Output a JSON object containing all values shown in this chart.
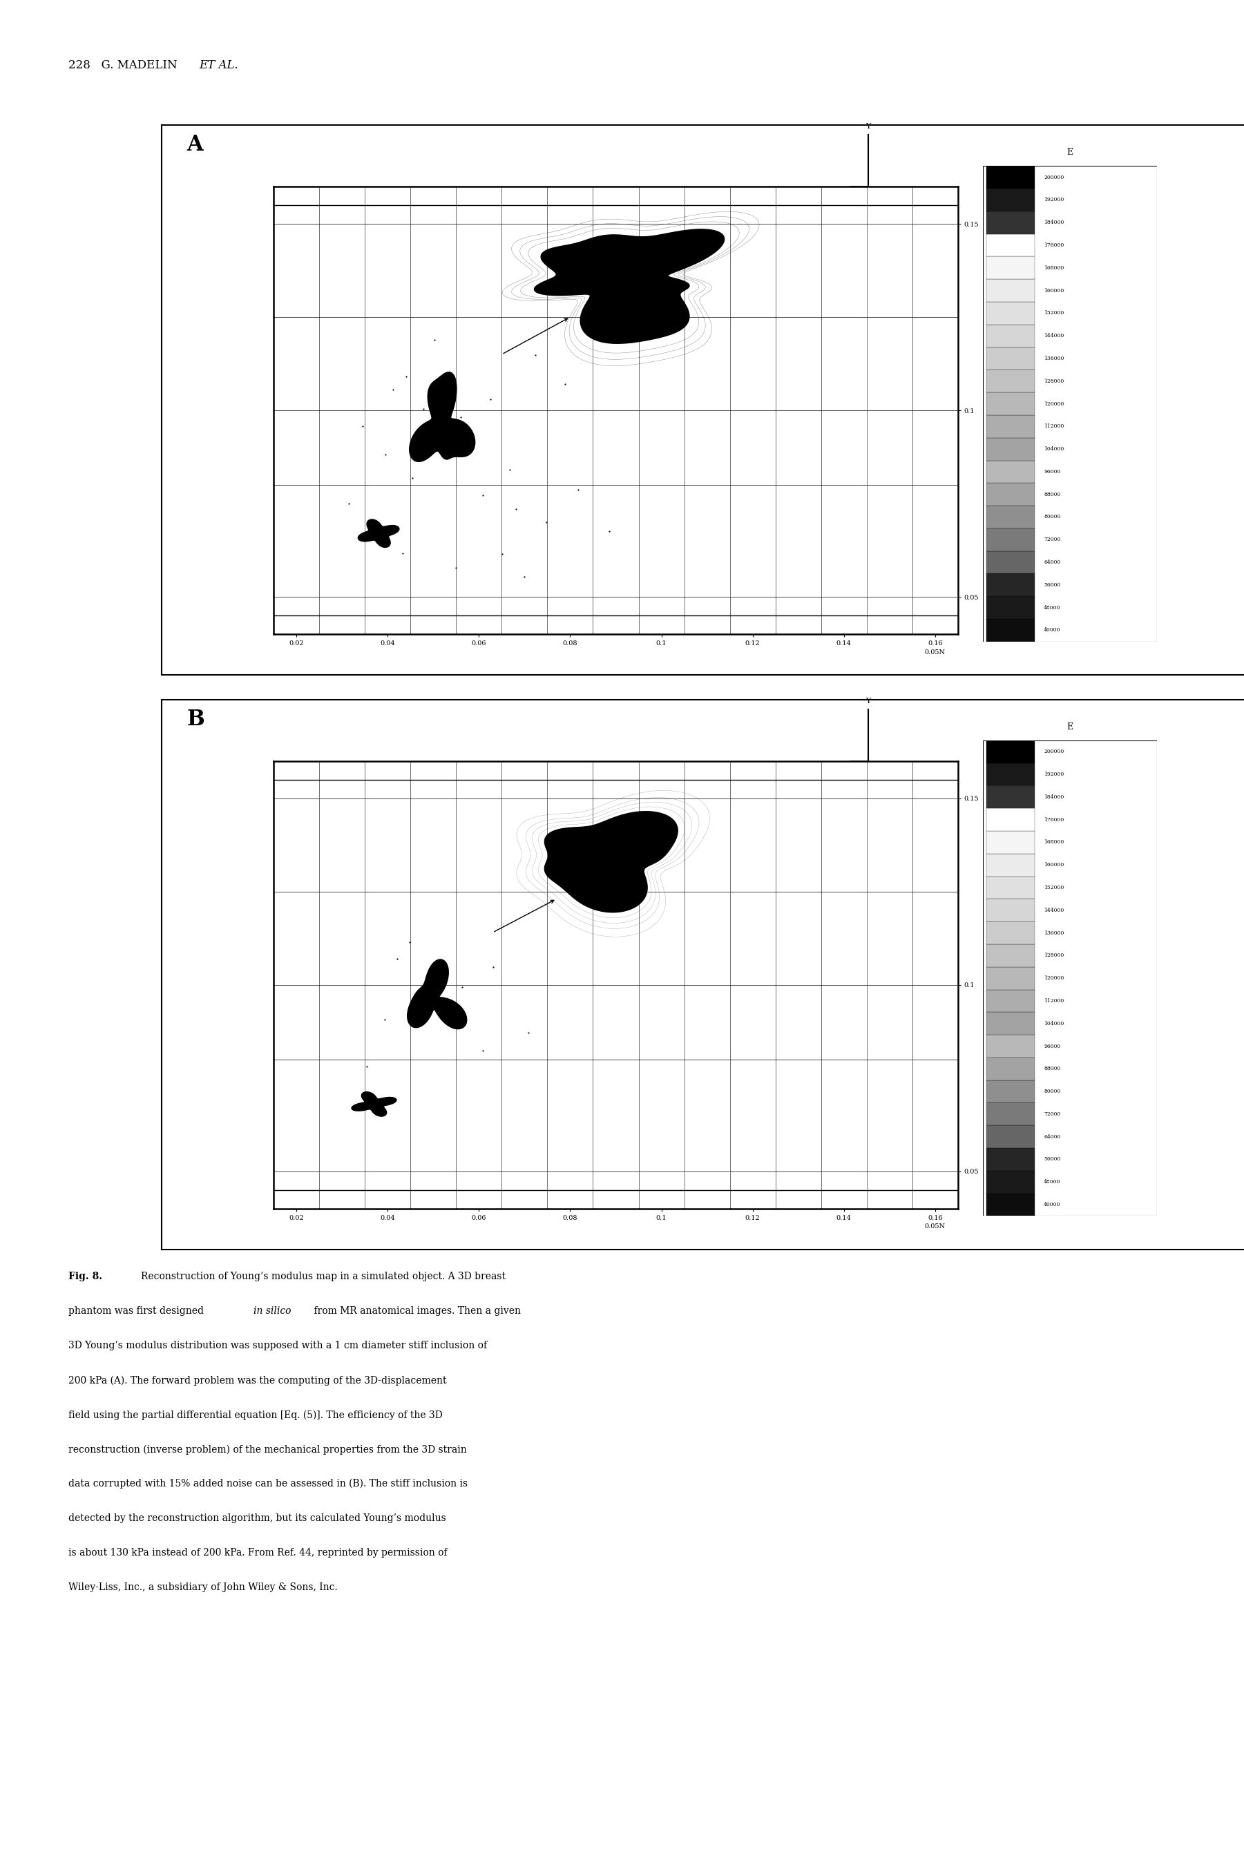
{
  "page_header": "228   G. MADELIN  ET AL.",
  "colorbar_title": "E",
  "colorbar_values": [
    200000,
    192000,
    184000,
    176000,
    168000,
    160000,
    152000,
    144000,
    136000,
    128000,
    120000,
    112000,
    104000,
    96000,
    88000,
    80000,
    72000,
    64000,
    56000,
    48000,
    40000
  ],
  "xaxis_ticks": [
    0.02,
    0.04,
    0.06,
    0.08,
    0.1,
    0.12,
    0.14,
    0.16
  ],
  "yaxis_ticks": [
    0.05,
    0.1,
    0.15
  ],
  "xlim": [
    0.015,
    0.165
  ],
  "ylim": [
    0.04,
    0.16
  ],
  "background_color": "#ffffff",
  "fig_width": 18.01,
  "fig_height": 27.0,
  "caption_fontsize": 10.0,
  "header_fontsize": 12,
  "panel_label_fontsize": 22
}
